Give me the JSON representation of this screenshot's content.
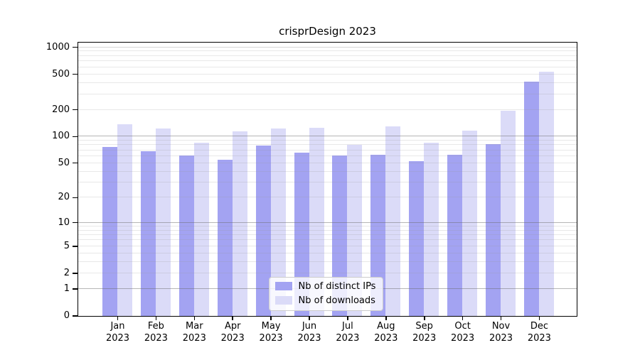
{
  "title": "crisprDesign 2023",
  "chart_data": {
    "type": "bar",
    "title": "crisprDesign 2023",
    "yscale": "log1p",
    "ylim": [
      0,
      1130
    ],
    "xlabel": "",
    "ylabel": "",
    "grid": "on",
    "legend_position": "lower center inside",
    "y_ticks": [
      0,
      1,
      2,
      5,
      10,
      20,
      50,
      100,
      200,
      500,
      1000
    ],
    "major_grid_values": [
      1,
      10,
      100
    ],
    "top_grid_value": 1000,
    "minor_grid_values": [
      2,
      3,
      4,
      5,
      6,
      7,
      8,
      9,
      20,
      30,
      40,
      50,
      60,
      70,
      80,
      90,
      200,
      300,
      400,
      500,
      600,
      700,
      800,
      900
    ],
    "categories": [
      {
        "month": "Jan",
        "year": "2023"
      },
      {
        "month": "Feb",
        "year": "2023"
      },
      {
        "month": "Mar",
        "year": "2023"
      },
      {
        "month": "Apr",
        "year": "2023"
      },
      {
        "month": "May",
        "year": "2023"
      },
      {
        "month": "Jun",
        "year": "2023"
      },
      {
        "month": "Jul",
        "year": "2023"
      },
      {
        "month": "Aug",
        "year": "2023"
      },
      {
        "month": "Sep",
        "year": "2023"
      },
      {
        "month": "Oct",
        "year": "2023"
      },
      {
        "month": "Nov",
        "year": "2023"
      },
      {
        "month": "Dec",
        "year": "2023"
      }
    ],
    "series": [
      {
        "name": "Nb of distinct IPs",
        "color": "#a3a3f2",
        "values": [
          76,
          67,
          60,
          54,
          79,
          65,
          61,
          62,
          52,
          62,
          81,
          410
        ]
      },
      {
        "name": "Nb of downloads",
        "color": "#dbdbf8",
        "values": [
          136,
          123,
          85,
          114,
          121,
          124,
          80,
          128,
          85,
          116,
          195,
          525
        ]
      }
    ]
  },
  "colors": {
    "background": "#ffffff",
    "axis": "#000000",
    "grid_major": "#b0b0b0",
    "grid_minor": "#e8e8e8",
    "grid_top": "#d6d6d6",
    "legend_border": "#cccccc"
  }
}
